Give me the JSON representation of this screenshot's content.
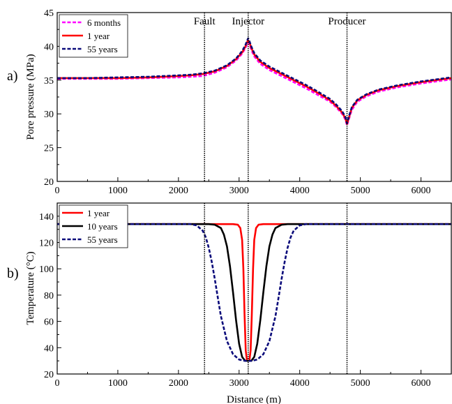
{
  "figure": {
    "panel_a_label": "a)",
    "panel_b_label": "b)",
    "shared_xlabel": "Distance (m)",
    "markers": [
      {
        "label": "Fault",
        "x": 2430
      },
      {
        "label": "Injector",
        "x": 3150
      },
      {
        "label": "Producer",
        "x": 4780
      }
    ]
  },
  "chart_data": [
    {
      "type": "line",
      "panel": "a",
      "title": "",
      "xlabel": "",
      "ylabel": "Pore pressure (MPa)",
      "xlim": [
        0,
        6500
      ],
      "ylim": [
        20,
        45
      ],
      "xticks": [
        0,
        1000,
        2000,
        3000,
        4000,
        5000,
        6000
      ],
      "yticks": [
        20,
        25,
        30,
        35,
        40,
        45
      ],
      "legend_position": "top-left",
      "series": [
        {
          "name": "6 months",
          "color": "#ff00ff",
          "style": "dashed",
          "x": [
            0,
            500,
            1000,
            1500,
            2000,
            2200,
            2400,
            2600,
            2800,
            2950,
            3050,
            3100,
            3130,
            3150,
            3170,
            3200,
            3250,
            3350,
            3500,
            3700,
            3900,
            4100,
            4300,
            4500,
            4600,
            4700,
            4750,
            4780,
            4810,
            4860,
            4950,
            5100,
            5300,
            5600,
            6000,
            6500
          ],
          "y": [
            35.2,
            35.2,
            35.2,
            35.3,
            35.4,
            35.5,
            35.6,
            36.1,
            36.9,
            37.9,
            38.9,
            39.7,
            40.3,
            40.6,
            40.3,
            39.5,
            38.5,
            37.4,
            36.5,
            35.6,
            34.7,
            33.8,
            32.8,
            31.8,
            31.0,
            30.0,
            29.2,
            28.3,
            29.2,
            30.6,
            31.8,
            32.6,
            33.3,
            33.9,
            34.5,
            35.1
          ]
        },
        {
          "name": "1 year",
          "color": "#ff0000",
          "style": "solid",
          "x": [
            0,
            500,
            1000,
            1500,
            2000,
            2200,
            2400,
            2600,
            2800,
            2950,
            3050,
            3100,
            3130,
            3150,
            3170,
            3200,
            3250,
            3350,
            3500,
            3700,
            3900,
            4100,
            4300,
            4500,
            4600,
            4700,
            4750,
            4780,
            4810,
            4860,
            4950,
            5100,
            5300,
            5600,
            6000,
            6500
          ],
          "y": [
            35.3,
            35.3,
            35.3,
            35.4,
            35.6,
            35.7,
            35.9,
            36.3,
            37.1,
            38.1,
            39.1,
            39.9,
            40.6,
            40.9,
            40.6,
            39.8,
            38.8,
            37.7,
            36.8,
            35.9,
            35.0,
            34.1,
            33.1,
            32.0,
            31.2,
            30.2,
            29.4,
            28.5,
            29.4,
            30.9,
            32.0,
            32.8,
            33.5,
            34.1,
            34.7,
            35.3
          ]
        },
        {
          "name": "55 years",
          "color": "#0a0a7a",
          "style": "dashed",
          "x": [
            0,
            500,
            1000,
            1500,
            2000,
            2200,
            2400,
            2600,
            2800,
            2950,
            3050,
            3100,
            3130,
            3150,
            3170,
            3200,
            3250,
            3350,
            3500,
            3700,
            3900,
            4100,
            4300,
            4500,
            4600,
            4700,
            4750,
            4780,
            4810,
            4860,
            4950,
            5100,
            5300,
            5600,
            6000,
            6500
          ],
          "y": [
            35.3,
            35.3,
            35.4,
            35.5,
            35.7,
            35.8,
            36.0,
            36.4,
            37.2,
            38.2,
            39.3,
            40.1,
            40.8,
            41.2,
            40.8,
            40.0,
            39.0,
            37.9,
            37.0,
            36.1,
            35.2,
            34.3,
            33.3,
            32.2,
            31.4,
            30.4,
            29.6,
            28.6,
            29.6,
            31.0,
            32.1,
            32.9,
            33.6,
            34.2,
            34.8,
            35.4
          ]
        }
      ]
    },
    {
      "type": "line",
      "panel": "b",
      "title": "",
      "xlabel": "Distance (m)",
      "ylabel": "Temperature (°C)",
      "xlim": [
        0,
        6500
      ],
      "ylim": [
        20,
        150
      ],
      "xticks": [
        0,
        1000,
        2000,
        3000,
        4000,
        5000,
        6000
      ],
      "yticks": [
        20,
        40,
        60,
        80,
        100,
        120,
        140
      ],
      "legend_position": "top-left",
      "series": [
        {
          "name": "1 year",
          "color": "#ff0000",
          "style": "solid",
          "x": [
            0,
            2900,
            2980,
            3020,
            3050,
            3070,
            3090,
            3110,
            3130,
            3150,
            3170,
            3190,
            3210,
            3230,
            3250,
            3280,
            3320,
            3400,
            6500
          ],
          "y": [
            134,
            134,
            133.5,
            131,
            122,
            100,
            65,
            38,
            30,
            30,
            30,
            38,
            65,
            100,
            122,
            131,
            133.5,
            134,
            134
          ]
        },
        {
          "name": "10 years",
          "color": "#000000",
          "style": "solid",
          "x": [
            0,
            2500,
            2600,
            2700,
            2750,
            2800,
            2850,
            2900,
            2950,
            3000,
            3050,
            3100,
            3150,
            3200,
            3250,
            3300,
            3350,
            3400,
            3450,
            3500,
            3550,
            3600,
            3700,
            3800,
            6500
          ],
          "y": [
            134,
            134,
            133.5,
            131,
            126,
            117,
            102,
            82,
            61,
            43,
            33,
            30,
            30,
            30,
            33,
            43,
            61,
            82,
            102,
            117,
            126,
            131,
            133.5,
            134,
            134
          ]
        },
        {
          "name": "55 years",
          "color": "#0a0a7a",
          "style": "dashed",
          "x": [
            0,
            2200,
            2300,
            2400,
            2450,
            2500,
            2550,
            2600,
            2650,
            2700,
            2800,
            2900,
            3000,
            3100,
            3150,
            3200,
            3300,
            3400,
            3500,
            3600,
            3650,
            3700,
            3750,
            3800,
            3850,
            3900,
            4000,
            4100,
            4200,
            6500
          ],
          "y": [
            134,
            134,
            133,
            129,
            124,
            116,
            105,
            92,
            78,
            64,
            45,
            35,
            31,
            30,
            30,
            30,
            31,
            35,
            45,
            64,
            78,
            92,
            105,
            116,
            124,
            129,
            133,
            134,
            134,
            134
          ]
        }
      ]
    }
  ]
}
